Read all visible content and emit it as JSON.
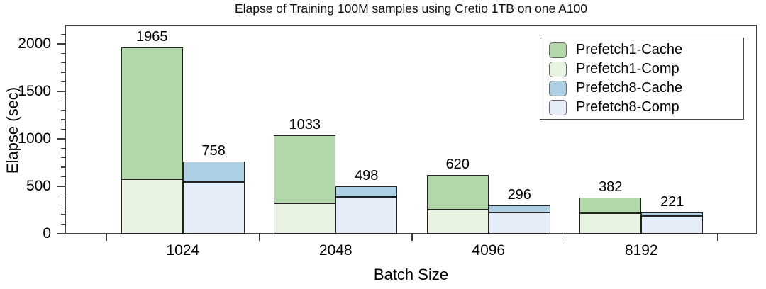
{
  "colors": {
    "Prefetch1-Cache": "#b2d7a8",
    "Prefetch1-Comp": "#e9f3e2",
    "Prefetch8-Cache": "#add0e4",
    "Prefetch8-Comp": "#e4edf8",
    "bar_border": "#222222",
    "axis": "#3f3f3f"
  },
  "chart_data": {
    "type": "bar",
    "stacked": true,
    "title": "Elapse of Training 100M samples using Cretio 1TB on one A100",
    "xlabel": "Batch Size",
    "ylabel": "Elapse (sec)",
    "categories": [
      "1024",
      "2048",
      "4096",
      "8192"
    ],
    "ylim": [
      0,
      2200
    ],
    "ytick_step": 500,
    "yminor_step": 100,
    "ytick_labels": [
      "0",
      "500",
      "1000",
      "1500",
      "2000"
    ],
    "groups": [
      {
        "name": "Prefetch1",
        "total_labels": [
          "1965",
          "1033",
          "620",
          "382"
        ],
        "stacks": [
          {
            "name": "Prefetch1-Comp",
            "values": [
              575,
              320,
              255,
              215
            ]
          },
          {
            "name": "Prefetch1-Cache",
            "values": [
              1390,
              713,
              365,
              167
            ]
          }
        ]
      },
      {
        "name": "Prefetch8",
        "total_labels": [
          "758",
          "498",
          "296",
          "221"
        ],
        "stacks": [
          {
            "name": "Prefetch8-Comp",
            "values": [
              545,
              385,
              226,
              185
            ]
          },
          {
            "name": "Prefetch8-Cache",
            "values": [
              213,
              113,
              70,
              36
            ]
          }
        ]
      }
    ],
    "legend": {
      "position": "upper right",
      "entries": [
        "Prefetch1-Cache",
        "Prefetch1-Comp",
        "Prefetch8-Cache",
        "Prefetch8-Comp"
      ]
    }
  }
}
